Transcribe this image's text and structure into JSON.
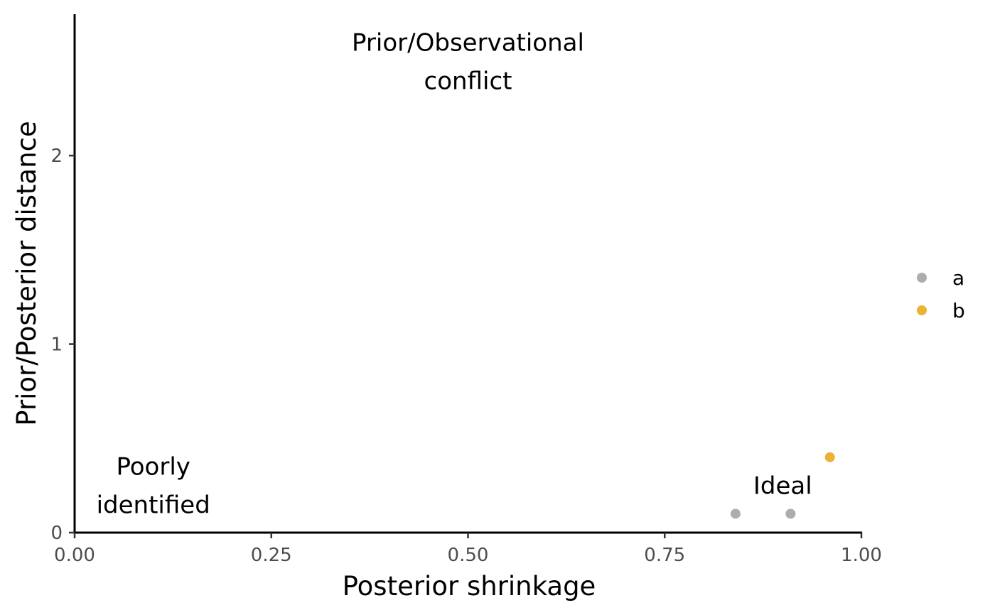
{
  "chart_data": {
    "type": "scatter",
    "xlabel": "Posterior shrinkage",
    "ylabel": "Prior/Posterior distance",
    "xlim": [
      0,
      1
    ],
    "ylim": [
      0,
      2.75
    ],
    "x_ticks": [
      0,
      0.25,
      0.5,
      0.75,
      1
    ],
    "x_tick_labels": [
      "0.00",
      "0.25",
      "0.50",
      "0.75",
      "1.00"
    ],
    "y_ticks": [
      0,
      1,
      2
    ],
    "y_tick_labels": [
      "0",
      "1",
      "2"
    ],
    "grid": false,
    "legend_position": "right",
    "series": [
      {
        "name": "a",
        "color": "#999999",
        "points": [
          {
            "x": 0.84,
            "y": 0.1
          },
          {
            "x": 0.91,
            "y": 0.1
          }
        ]
      },
      {
        "name": "b",
        "color": "#E69F00",
        "points": [
          {
            "x": 0.96,
            "y": 0.4
          }
        ]
      }
    ],
    "annotations": [
      {
        "lines": [
          "Prior/Observational",
          "conflict"
        ],
        "x": 0.5,
        "y": 2.5
      },
      {
        "lines": [
          "Poorly",
          "identified"
        ],
        "x": 0.1,
        "y": 0.25
      },
      {
        "lines": [
          "Ideal"
        ],
        "x": 0.9,
        "y": 0.25
      }
    ]
  }
}
